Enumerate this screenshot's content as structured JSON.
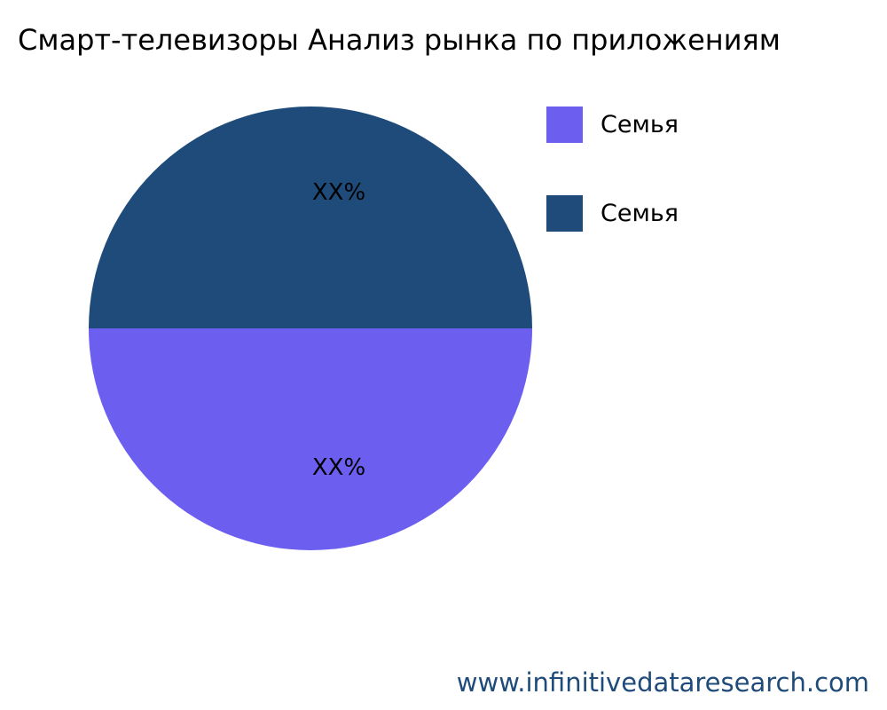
{
  "chart_data": {
    "type": "pie",
    "title": "Смарт-телевизоры Анализ рынка по приложениям",
    "slices": [
      {
        "label": "Семья",
        "value": 50,
        "data_label": "XX%",
        "color": "#6c5ff0"
      },
      {
        "label": "Семья",
        "value": 50,
        "data_label": "XX%",
        "color": "#1f4b7a"
      }
    ],
    "legend_position": "right"
  },
  "footer": "www.infinitivedataresearch.com"
}
